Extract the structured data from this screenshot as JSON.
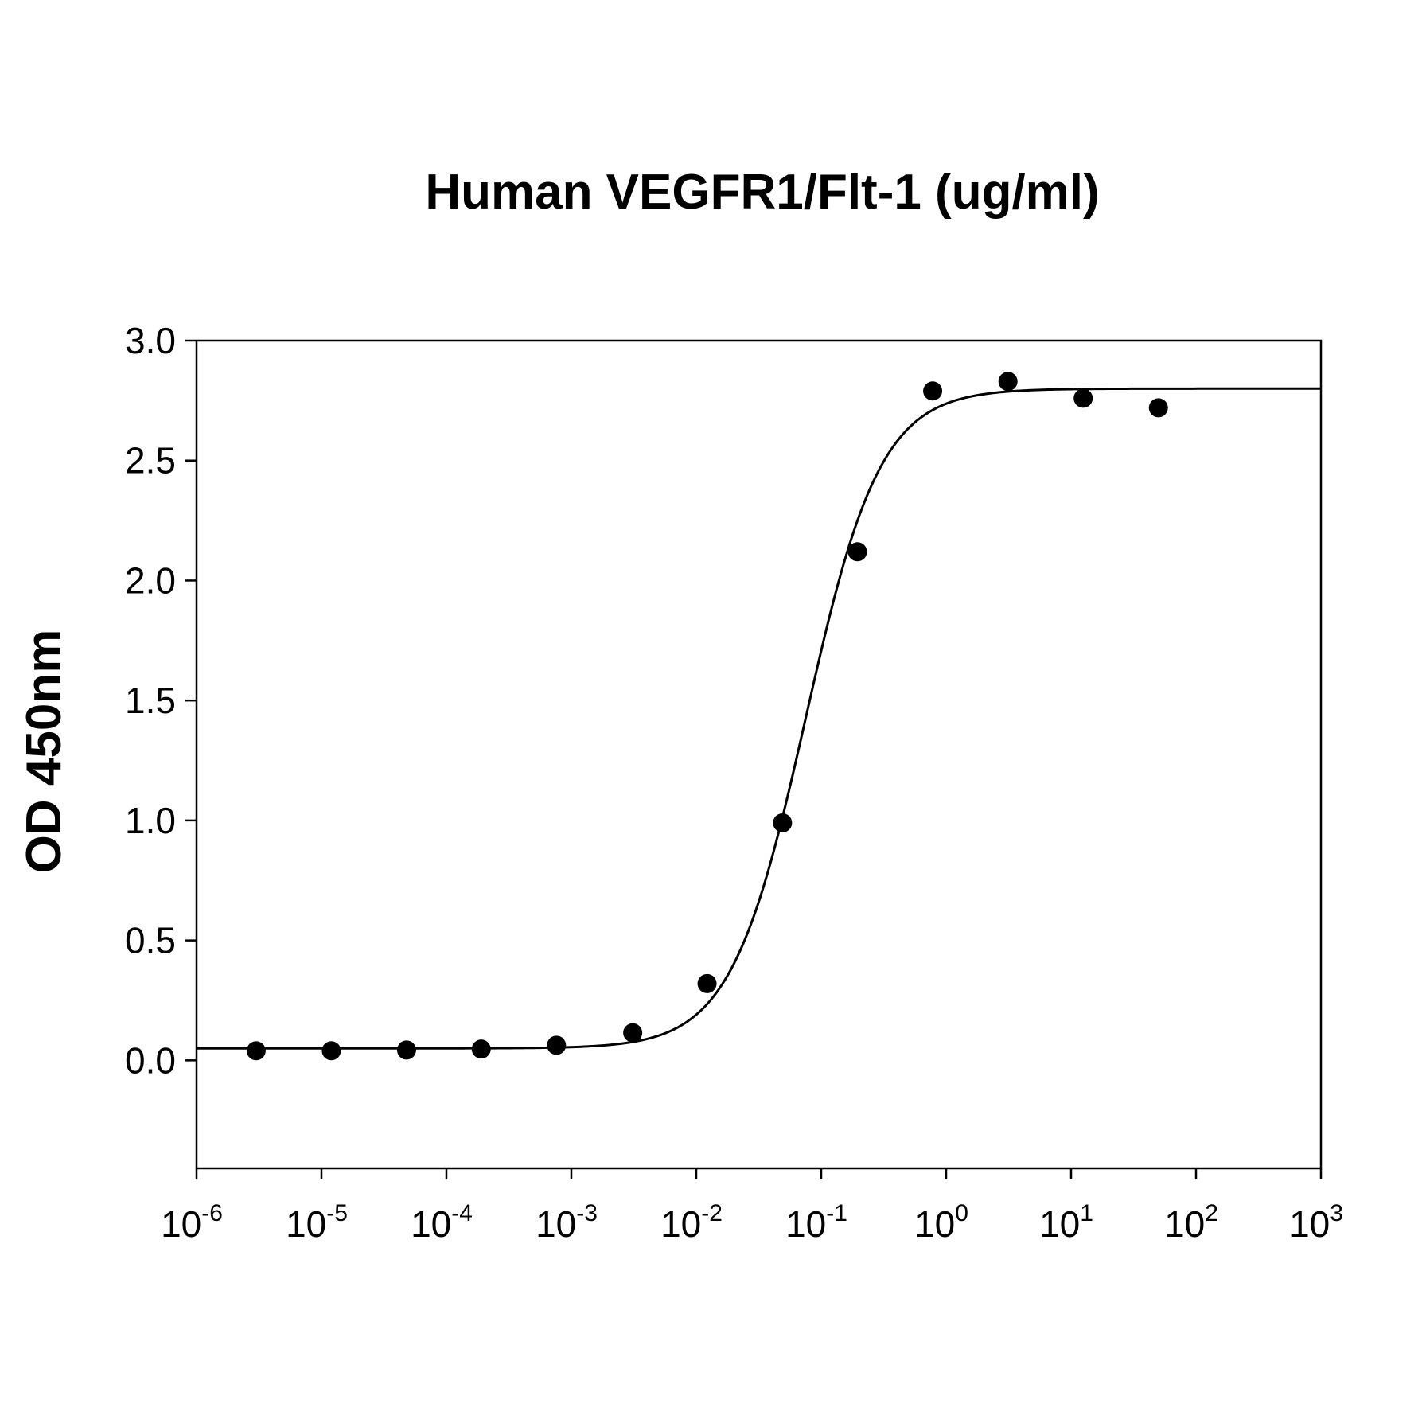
{
  "chart_data": {
    "type": "scatter",
    "title": "Human VEGFR1/Flt-1 (ug/ml)",
    "xlabel": "",
    "ylabel": "OD 450nm",
    "xscale": "log",
    "xlim": [
      1e-06,
      1000
    ],
    "ylim": [
      -0.45,
      3.0
    ],
    "grid": false,
    "yticks": [
      "0.0",
      "0.5",
      "1.0",
      "1.5",
      "2.0",
      "2.5",
      "3.0"
    ],
    "xticks": [
      {
        "base": "10",
        "exp": "-6"
      },
      {
        "base": "10",
        "exp": "-5"
      },
      {
        "base": "10",
        "exp": "-4"
      },
      {
        "base": "10",
        "exp": "-3"
      },
      {
        "base": "10",
        "exp": "-2"
      },
      {
        "base": "10",
        "exp": "-1"
      },
      {
        "base": "10",
        "exp": "0"
      },
      {
        "base": "10",
        "exp": "1"
      },
      {
        "base": "10",
        "exp": "2"
      },
      {
        "base": "10",
        "exp": "3"
      }
    ],
    "series": [
      {
        "kind": "points",
        "x": [
          3e-06,
          1.2e-05,
          4.8e-05,
          0.00019,
          0.00076,
          0.0031,
          0.0122,
          0.049,
          0.195,
          0.78,
          3.125,
          12.5,
          50
        ],
        "y": [
          0.04,
          0.04,
          0.043,
          0.047,
          0.063,
          0.115,
          0.32,
          0.99,
          2.12,
          2.79,
          2.83,
          2.76,
          2.72
        ]
      },
      {
        "kind": "fit",
        "model": "4PL",
        "bottom": 0.05,
        "top": 2.8,
        "ec50": 0.075,
        "hill": 1.45
      }
    ]
  }
}
